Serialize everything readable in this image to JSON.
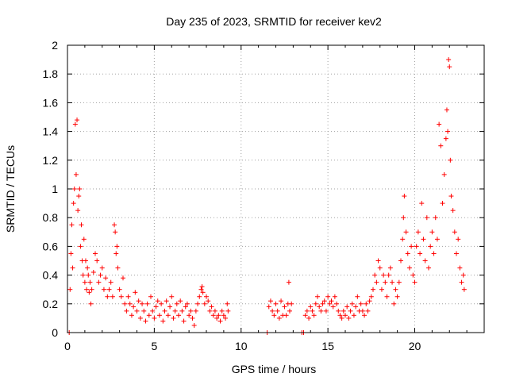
{
  "chart_data": {
    "type": "scatter",
    "title": "Day 235 of 2023, SRMTID for receiver kev2",
    "xlabel": "GPS time / hours",
    "ylabel": "SRMTID / TECUs",
    "xlim": [
      0,
      24
    ],
    "ylim": [
      0,
      2
    ],
    "grid": true,
    "marker": "plus",
    "color": "#ff0000",
    "x_ticks": [
      0,
      5,
      10,
      15,
      20
    ],
    "x_tick_labels": [
      "0",
      "5",
      "10",
      "15",
      "20"
    ],
    "y_ticks": [
      0,
      0.2,
      0.4,
      0.6,
      0.8,
      1,
      1.2,
      1.4,
      1.6,
      1.8,
      2
    ],
    "y_tick_labels": [
      "0",
      "0.2",
      "0.4",
      "0.6",
      "0.8",
      "1",
      "1.2",
      "1.4",
      "1.6",
      "1.8",
      "2"
    ],
    "series": [
      {
        "name": "kev2",
        "points": [
          [
            0.1,
            0.0
          ],
          [
            0.15,
            0.3
          ],
          [
            0.2,
            0.55
          ],
          [
            0.25,
            0.75
          ],
          [
            0.3,
            0.45
          ],
          [
            0.35,
            0.9
          ],
          [
            0.4,
            1.0
          ],
          [
            0.45,
            1.45
          ],
          [
            0.5,
            1.1
          ],
          [
            0.55,
            1.48
          ],
          [
            0.6,
            0.85
          ],
          [
            0.65,
            0.95
          ],
          [
            0.7,
            1.0
          ],
          [
            0.75,
            0.6
          ],
          [
            0.8,
            0.75
          ],
          [
            0.85,
            0.5
          ],
          [
            0.9,
            0.4
          ],
          [
            0.95,
            0.65
          ],
          [
            1.0,
            0.35
          ],
          [
            1.05,
            0.5
          ],
          [
            1.1,
            0.3
          ],
          [
            1.15,
            0.45
          ],
          [
            1.2,
            0.4
          ],
          [
            1.25,
            0.28
          ],
          [
            1.3,
            0.35
          ],
          [
            1.35,
            0.2
          ],
          [
            1.4,
            0.3
          ],
          [
            1.5,
            0.42
          ],
          [
            1.6,
            0.55
          ],
          [
            1.7,
            0.5
          ],
          [
            1.8,
            0.35
          ],
          [
            1.9,
            0.4
          ],
          [
            2.0,
            0.45
          ],
          [
            2.1,
            0.3
          ],
          [
            2.2,
            0.38
          ],
          [
            2.3,
            0.25
          ],
          [
            2.4,
            0.3
          ],
          [
            2.5,
            0.35
          ],
          [
            2.6,
            0.25
          ],
          [
            2.7,
            0.75
          ],
          [
            2.75,
            0.7
          ],
          [
            2.8,
            0.55
          ],
          [
            2.85,
            0.6
          ],
          [
            2.9,
            0.45
          ],
          [
            3.0,
            0.3
          ],
          [
            3.1,
            0.25
          ],
          [
            3.2,
            0.38
          ],
          [
            3.3,
            0.2
          ],
          [
            3.4,
            0.15
          ],
          [
            3.5,
            0.25
          ],
          [
            3.6,
            0.2
          ],
          [
            3.7,
            0.12
          ],
          [
            3.8,
            0.18
          ],
          [
            3.9,
            0.28
          ],
          [
            4.0,
            0.15
          ],
          [
            4.1,
            0.22
          ],
          [
            4.2,
            0.1
          ],
          [
            4.3,
            0.2
          ],
          [
            4.4,
            0.15
          ],
          [
            4.5,
            0.08
          ],
          [
            4.6,
            0.2
          ],
          [
            4.7,
            0.12
          ],
          [
            4.8,
            0.25
          ],
          [
            4.9,
            0.15
          ],
          [
            5.0,
            0.1
          ],
          [
            5.1,
            0.18
          ],
          [
            5.2,
            0.22
          ],
          [
            5.3,
            0.12
          ],
          [
            5.4,
            0.2
          ],
          [
            5.5,
            0.08
          ],
          [
            5.6,
            0.15
          ],
          [
            5.7,
            0.22
          ],
          [
            5.8,
            0.12
          ],
          [
            5.9,
            0.18
          ],
          [
            6.0,
            0.25
          ],
          [
            6.1,
            0.1
          ],
          [
            6.2,
            0.15
          ],
          [
            6.3,
            0.2
          ],
          [
            6.4,
            0.12
          ],
          [
            6.5,
            0.22
          ],
          [
            6.6,
            0.15
          ],
          [
            6.7,
            0.08
          ],
          [
            6.8,
            0.18
          ],
          [
            6.9,
            0.2
          ],
          [
            7.0,
            0.12
          ],
          [
            7.1,
            0.15
          ],
          [
            7.2,
            0.1
          ],
          [
            7.3,
            0.05
          ],
          [
            7.4,
            0.15
          ],
          [
            7.5,
            0.2
          ],
          [
            7.6,
            0.25
          ],
          [
            7.7,
            0.3
          ],
          [
            7.75,
            0.32
          ],
          [
            7.8,
            0.28
          ],
          [
            7.9,
            0.2
          ],
          [
            8.0,
            0.25
          ],
          [
            8.1,
            0.22
          ],
          [
            8.2,
            0.15
          ],
          [
            8.3,
            0.18
          ],
          [
            8.4,
            0.12
          ],
          [
            8.5,
            0.15
          ],
          [
            8.6,
            0.1
          ],
          [
            8.7,
            0.12
          ],
          [
            8.8,
            0.08
          ],
          [
            8.9,
            0.15
          ],
          [
            9.0,
            0.12
          ],
          [
            9.1,
            0.1
          ],
          [
            9.2,
            0.2
          ],
          [
            9.25,
            0.15
          ],
          [
            11.5,
            0.0
          ],
          [
            11.6,
            0.18
          ],
          [
            11.7,
            0.22
          ],
          [
            11.8,
            0.15
          ],
          [
            11.9,
            0.12
          ],
          [
            12.0,
            0.2
          ],
          [
            12.1,
            0.15
          ],
          [
            12.2,
            0.1
          ],
          [
            12.3,
            0.22
          ],
          [
            12.4,
            0.12
          ],
          [
            12.5,
            0.18
          ],
          [
            12.6,
            0.12
          ],
          [
            12.7,
            0.2
          ],
          [
            12.75,
            0.35
          ],
          [
            12.8,
            0.15
          ],
          [
            12.9,
            0.2
          ],
          [
            13.5,
            0.0
          ],
          [
            13.6,
            0.0
          ],
          [
            13.7,
            0.12
          ],
          [
            13.8,
            0.15
          ],
          [
            13.9,
            0.1
          ],
          [
            14.0,
            0.18
          ],
          [
            14.1,
            0.15
          ],
          [
            14.2,
            0.12
          ],
          [
            14.3,
            0.2
          ],
          [
            14.4,
            0.25
          ],
          [
            14.5,
            0.18
          ],
          [
            14.6,
            0.15
          ],
          [
            14.7,
            0.2
          ],
          [
            14.8,
            0.22
          ],
          [
            14.9,
            0.15
          ],
          [
            15.0,
            0.25
          ],
          [
            15.1,
            0.2
          ],
          [
            15.2,
            0.22
          ],
          [
            15.3,
            0.18
          ],
          [
            15.4,
            0.25
          ],
          [
            15.5,
            0.2
          ],
          [
            15.6,
            0.15
          ],
          [
            15.7,
            0.12
          ],
          [
            15.8,
            0.1
          ],
          [
            15.9,
            0.15
          ],
          [
            16.0,
            0.12
          ],
          [
            16.1,
            0.18
          ],
          [
            16.2,
            0.1
          ],
          [
            16.3,
            0.15
          ],
          [
            16.4,
            0.2
          ],
          [
            16.5,
            0.12
          ],
          [
            16.6,
            0.18
          ],
          [
            16.7,
            0.25
          ],
          [
            16.8,
            0.15
          ],
          [
            16.9,
            0.2
          ],
          [
            17.0,
            0.15
          ],
          [
            17.1,
            0.12
          ],
          [
            17.2,
            0.2
          ],
          [
            17.3,
            0.15
          ],
          [
            17.4,
            0.22
          ],
          [
            17.5,
            0.25
          ],
          [
            17.6,
            0.3
          ],
          [
            17.7,
            0.4
          ],
          [
            17.8,
            0.35
          ],
          [
            17.9,
            0.5
          ],
          [
            18.0,
            0.45
          ],
          [
            18.1,
            0.3
          ],
          [
            18.2,
            0.4
          ],
          [
            18.3,
            0.35
          ],
          [
            18.4,
            0.25
          ],
          [
            18.5,
            0.4
          ],
          [
            18.6,
            0.45
          ],
          [
            18.7,
            0.35
          ],
          [
            18.8,
            0.2
          ],
          [
            18.9,
            0.3
          ],
          [
            19.0,
            0.25
          ],
          [
            19.1,
            0.35
          ],
          [
            19.2,
            0.5
          ],
          [
            19.3,
            0.65
          ],
          [
            19.35,
            0.8
          ],
          [
            19.4,
            0.95
          ],
          [
            19.5,
            0.7
          ],
          [
            19.6,
            0.55
          ],
          [
            19.7,
            0.45
          ],
          [
            19.8,
            0.6
          ],
          [
            19.9,
            0.4
          ],
          [
            20.0,
            0.35
          ],
          [
            20.1,
            0.6
          ],
          [
            20.2,
            0.7
          ],
          [
            20.3,
            0.55
          ],
          [
            20.4,
            0.9
          ],
          [
            20.5,
            0.65
          ],
          [
            20.6,
            0.5
          ],
          [
            20.7,
            0.8
          ],
          [
            20.8,
            0.45
          ],
          [
            20.9,
            0.6
          ],
          [
            21.0,
            0.7
          ],
          [
            21.1,
            0.55
          ],
          [
            21.2,
            0.8
          ],
          [
            21.3,
            0.65
          ],
          [
            21.4,
            1.45
          ],
          [
            21.5,
            1.3
          ],
          [
            21.6,
            0.9
          ],
          [
            21.7,
            1.1
          ],
          [
            21.8,
            1.35
          ],
          [
            21.85,
            1.55
          ],
          [
            21.9,
            1.4
          ],
          [
            21.95,
            1.9
          ],
          [
            22.0,
            1.85
          ],
          [
            22.05,
            1.2
          ],
          [
            22.1,
            0.95
          ],
          [
            22.2,
            0.85
          ],
          [
            22.3,
            0.7
          ],
          [
            22.4,
            0.55
          ],
          [
            22.5,
            0.65
          ],
          [
            22.6,
            0.45
          ],
          [
            22.7,
            0.35
          ],
          [
            22.8,
            0.4
          ],
          [
            22.85,
            0.3
          ]
        ]
      }
    ]
  }
}
